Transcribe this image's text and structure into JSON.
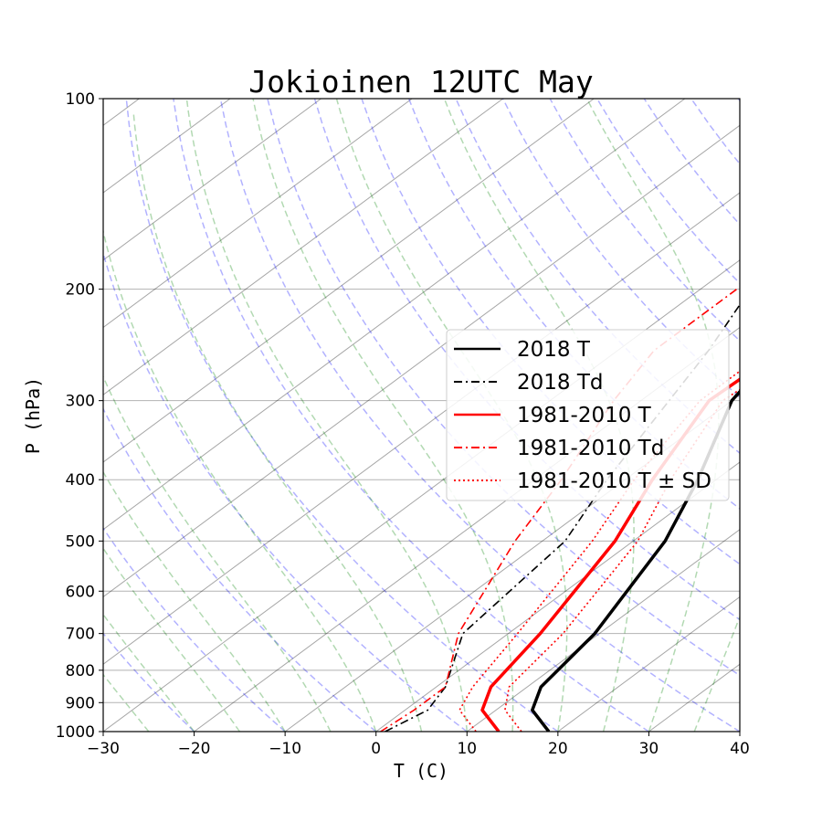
{
  "chart_data": {
    "type": "line",
    "title": "Jokioinen 12UTC May",
    "xlabel": "T (C)",
    "ylabel": "P (hPa)",
    "xlim": [
      -30,
      40
    ],
    "ylim": [
      1000,
      100
    ],
    "y_scale": "log",
    "x_ticks": [
      "−30",
      "−20",
      "−10",
      "0",
      "10",
      "20",
      "30",
      "40"
    ],
    "y_ticks": [
      100,
      200,
      300,
      400,
      500,
      600,
      700,
      800,
      900,
      1000
    ],
    "grid": true,
    "legend_position": "center-right",
    "background_lines": {
      "isotherms": "gray solid",
      "dry_adiabats": "blue dashed",
      "moist_adiabats": "green dashed"
    },
    "series": [
      {
        "name": "2018 T",
        "color": "#000000",
        "style": "solid",
        "width": 3.5,
        "points": [
          [
            1000,
            19
          ],
          [
            925,
            14
          ],
          [
            850,
            11.5
          ],
          [
            700,
            9.5
          ],
          [
            500,
            3.5
          ],
          [
            400,
            -2
          ],
          [
            300,
            -10
          ],
          [
            250,
            -12.5
          ],
          [
            200,
            -9
          ],
          [
            150,
            3
          ],
          [
            100,
            14.5
          ]
        ]
      },
      {
        "name": "2018 Td",
        "color": "#000000",
        "style": "dashdot",
        "width": 1.6,
        "points": [
          [
            1000,
            1
          ],
          [
            925,
            2.5
          ],
          [
            850,
            1
          ],
          [
            700,
            -5
          ],
          [
            500,
            -7.5
          ],
          [
            400,
            -12
          ],
          [
            250,
            -20
          ],
          [
            200,
            -24.5
          ],
          [
            160,
            -23
          ]
        ]
      },
      {
        "name": "1981-2010 T",
        "color": "#ff0000",
        "style": "solid",
        "width": 3.5,
        "points": [
          [
            1000,
            13.5
          ],
          [
            925,
            8.5
          ],
          [
            850,
            6
          ],
          [
            700,
            3.5
          ],
          [
            500,
            -2
          ],
          [
            400,
            -7
          ],
          [
            300,
            -12.5
          ],
          [
            250,
            -12
          ],
          [
            200,
            -2
          ],
          [
            150,
            7
          ],
          [
            100,
            18
          ]
        ]
      },
      {
        "name": "1981-2010 Td",
        "color": "#ff0000",
        "style": "dashdot",
        "width": 1.6,
        "points": [
          [
            1000,
            0.5
          ],
          [
            925,
            1
          ],
          [
            850,
            1
          ],
          [
            700,
            -5.5
          ],
          [
            500,
            -13
          ],
          [
            400,
            -17
          ],
          [
            300,
            -23
          ],
          [
            250,
            -26
          ],
          [
            200,
            -26
          ]
        ]
      },
      {
        "name": "1981-2010 T ± SD",
        "color": "#ff0000",
        "style": "dotted",
        "width": 1.6,
        "points": [
          [
            1000,
            16
          ],
          [
            925,
            11
          ],
          [
            850,
            8
          ],
          [
            700,
            6
          ],
          [
            500,
            0.5
          ],
          [
            400,
            -5
          ],
          [
            300,
            -11
          ],
          [
            250,
            -10
          ],
          [
            200,
            0
          ],
          [
            150,
            9
          ],
          [
            100,
            19
          ]
        ]
      },
      {
        "name": "",
        "color": "#ff0000",
        "style": "dotted",
        "width": 1.6,
        "legend": false,
        "points": [
          [
            1000,
            11
          ],
          [
            925,
            6
          ],
          [
            850,
            4
          ],
          [
            700,
            1
          ],
          [
            500,
            -4.5
          ],
          [
            400,
            -9
          ],
          [
            300,
            -13.5
          ],
          [
            250,
            -13.5
          ],
          [
            200,
            -4
          ],
          [
            150,
            5
          ],
          [
            100,
            17
          ]
        ]
      }
    ]
  }
}
